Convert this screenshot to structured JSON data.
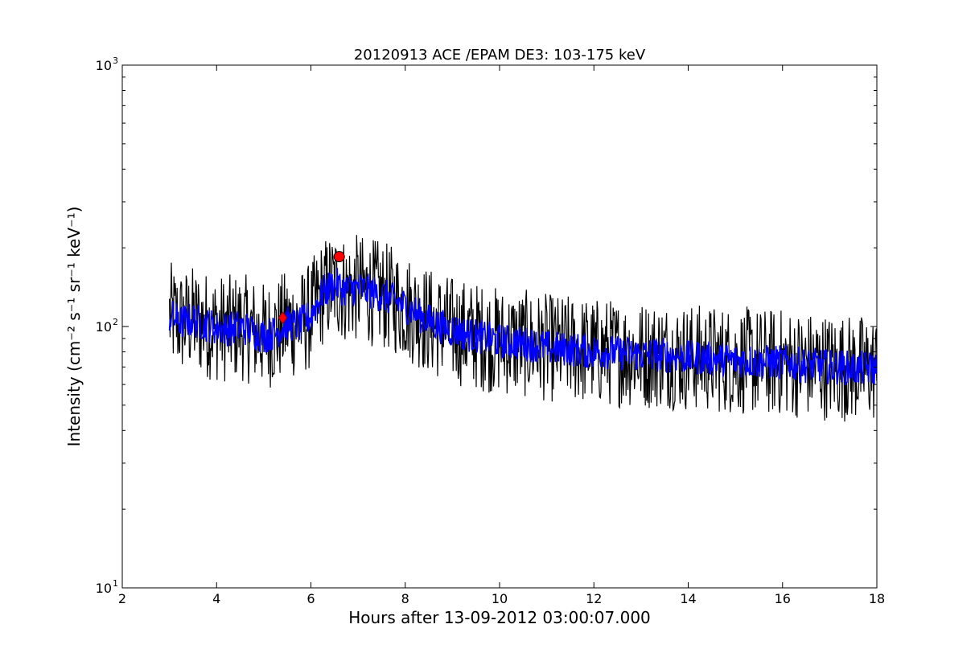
{
  "chart_data": {
    "type": "line",
    "title": "20120913 ACE /EPAM DE3: 103-175 keV",
    "xlabel": "Hours after 13-09-2012 03:00:07.000",
    "ylabel": "Intensity (cm⁻² s⁻¹ sr⁻¹ keV⁻¹)",
    "xlim": [
      2,
      18
    ],
    "ylim": [
      10,
      1000
    ],
    "yscale": "log",
    "grid": false,
    "x_ticks": [
      2,
      4,
      6,
      8,
      10,
      12,
      14,
      16,
      18
    ],
    "x_tick_labels": [
      "2",
      "4",
      "6",
      "8",
      "10",
      "12",
      "14",
      "16",
      "18"
    ],
    "y_ticks": [
      10,
      100,
      1000
    ],
    "y_tick_labels": [
      "10",
      "10",
      "10"
    ],
    "y_tick_exponents": [
      "1",
      "2",
      "3"
    ],
    "series": [
      {
        "color": "#000000",
        "x": [
          3.0,
          3.25,
          3.5,
          3.75,
          4.0,
          4.25,
          4.5,
          4.75,
          5.0,
          5.25,
          5.5,
          5.75,
          6.0,
          6.25,
          6.5,
          6.75,
          7.0,
          7.25,
          7.5,
          7.75,
          8.0,
          8.25,
          8.5,
          8.75,
          9.0,
          9.25,
          9.5,
          9.75,
          10.0,
          10.25,
          10.5,
          10.75,
          11.0,
          11.25,
          11.5,
          11.75,
          12.0,
          12.25,
          12.5,
          12.75,
          13.0,
          13.25,
          13.5,
          13.75,
          14.0,
          14.25,
          14.5,
          14.75,
          15.0,
          15.25,
          15.5,
          15.75,
          16.0,
          16.25,
          16.5,
          16.75,
          17.0,
          17.25,
          17.5,
          17.75,
          18.0
        ],
        "y": [
          110,
          104,
          106,
          102,
          99,
          98,
          100,
          96,
          92,
          95,
          103,
          101,
          110,
          135,
          145,
          138,
          140,
          136,
          132,
          126,
          120,
          112,
          105,
          100,
          97,
          94,
          92,
          90,
          88,
          87,
          86,
          85,
          83,
          82,
          82,
          81,
          80,
          80,
          79,
          79,
          78,
          78,
          78,
          77,
          76,
          76,
          75,
          75,
          74,
          74,
          73,
          73,
          73,
          72,
          71,
          71,
          70,
          70,
          69,
          69,
          69
        ]
      },
      {
        "color": "#0000ff",
        "x": [
          3.0,
          3.25,
          3.5,
          3.75,
          4.0,
          4.25,
          4.5,
          4.75,
          5.0,
          5.25,
          5.5,
          5.75,
          6.0,
          6.25,
          6.5,
          6.75,
          7.0,
          7.25,
          7.5,
          7.75,
          8.0,
          8.25,
          8.5,
          8.75,
          9.0,
          9.25,
          9.5,
          9.75,
          10.0,
          10.25,
          10.5,
          10.75,
          11.0,
          11.25,
          11.5,
          11.75,
          12.0,
          12.25,
          12.5,
          12.75,
          13.0,
          13.25,
          13.5,
          13.75,
          14.0,
          14.25,
          14.5,
          14.75,
          15.0,
          15.25,
          15.5,
          15.75,
          16.0,
          16.25,
          16.5,
          16.75,
          17.0,
          17.25,
          17.5,
          17.75,
          18.0
        ],
        "y": [
          110,
          104,
          106,
          102,
          99,
          98,
          100,
          96,
          92,
          95,
          103,
          101,
          110,
          135,
          145,
          138,
          140,
          136,
          132,
          126,
          120,
          112,
          105,
          100,
          97,
          94,
          92,
          90,
          88,
          87,
          86,
          85,
          83,
          82,
          82,
          81,
          80,
          80,
          79,
          79,
          78,
          78,
          78,
          77,
          76,
          76,
          75,
          75,
          74,
          74,
          73,
          73,
          73,
          72,
          71,
          71,
          70,
          70,
          69,
          69,
          69
        ]
      }
    ],
    "markers": [
      {
        "shape": "circle",
        "x": 6.6,
        "y": 185,
        "color": "#ff0000"
      },
      {
        "shape": "diamond",
        "x": 5.4,
        "y": 108,
        "color": "#ff0000"
      }
    ]
  }
}
